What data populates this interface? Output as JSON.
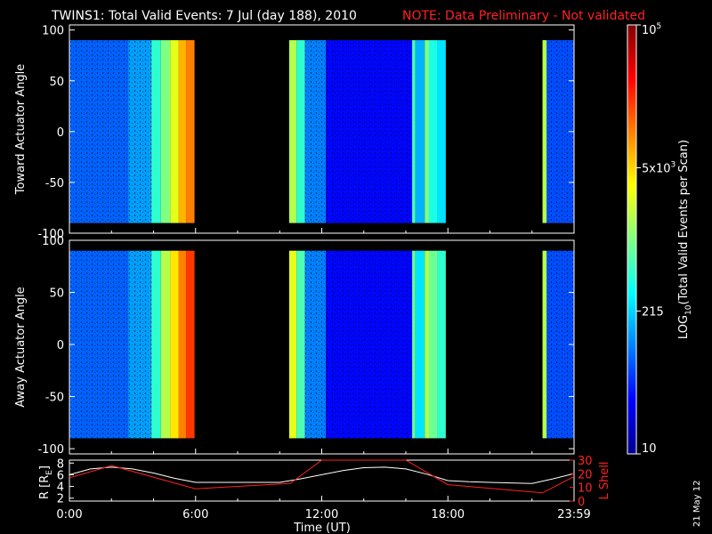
{
  "title": {
    "main": "TWINS1: Total Valid Events:  7 Jul (day 188), 2010",
    "note": "NOTE: Data Preliminary - Not validated"
  },
  "date_stamp": "21 May 12",
  "colors": {
    "background": "#000000",
    "note": "#ff2222",
    "r_line": "#ffffff",
    "lshell_line": "#ff2222"
  },
  "chart_data": [
    {
      "type": "heatmap",
      "name": "toward",
      "ylabel": "Toward Actuator Angle",
      "ylim": [
        -100,
        105
      ],
      "yticks": [
        -100,
        -50,
        0,
        50,
        100
      ],
      "xlim": [
        0,
        24
      ],
      "data_y_range": [
        -90,
        90
      ],
      "segments": [
        {
          "start": 0.0,
          "end": 2.8,
          "level": 0.22
        },
        {
          "start": 2.8,
          "end": 3.9,
          "level": 0.28
        },
        {
          "start": 3.9,
          "end": 4.35,
          "level": 0.42
        },
        {
          "start": 4.35,
          "end": 4.8,
          "level": 0.5
        },
        {
          "start": 4.8,
          "end": 5.2,
          "level": 0.6
        },
        {
          "start": 5.2,
          "end": 5.55,
          "level": 0.7
        },
        {
          "start": 5.55,
          "end": 5.95,
          "level": 0.75
        },
        {
          "start": 10.45,
          "end": 10.8,
          "level": 0.55
        },
        {
          "start": 10.8,
          "end": 11.2,
          "level": 0.42
        },
        {
          "start": 11.2,
          "end": 12.2,
          "level": 0.25
        },
        {
          "start": 12.2,
          "end": 16.3,
          "level": 0.13
        },
        {
          "start": 16.3,
          "end": 16.45,
          "level": 0.45
        },
        {
          "start": 16.45,
          "end": 16.9,
          "level": 0.3
        },
        {
          "start": 16.9,
          "end": 17.1,
          "level": 0.5
        },
        {
          "start": 17.1,
          "end": 17.5,
          "level": 0.4
        },
        {
          "start": 17.5,
          "end": 17.9,
          "level": 0.35
        },
        {
          "start": 22.5,
          "end": 22.7,
          "level": 0.55
        },
        {
          "start": 22.7,
          "end": 24.0,
          "level": 0.2
        }
      ]
    },
    {
      "type": "heatmap",
      "name": "away",
      "ylabel": "Away Actuator Angle",
      "ylim": [
        -105,
        100
      ],
      "yticks": [
        -100,
        -50,
        0,
        50,
        100
      ],
      "xlim": [
        0,
        24
      ],
      "data_y_range": [
        -90,
        90
      ],
      "segments": [
        {
          "start": 0.0,
          "end": 2.8,
          "level": 0.22
        },
        {
          "start": 2.8,
          "end": 3.9,
          "level": 0.28
        },
        {
          "start": 3.9,
          "end": 4.35,
          "level": 0.42
        },
        {
          "start": 4.35,
          "end": 4.8,
          "level": 0.55
        },
        {
          "start": 4.8,
          "end": 5.2,
          "level": 0.65
        },
        {
          "start": 5.2,
          "end": 5.55,
          "level": 0.75
        },
        {
          "start": 5.55,
          "end": 5.95,
          "level": 0.82
        },
        {
          "start": 10.45,
          "end": 10.8,
          "level": 0.6
        },
        {
          "start": 10.8,
          "end": 11.2,
          "level": 0.45
        },
        {
          "start": 11.2,
          "end": 12.2,
          "level": 0.25
        },
        {
          "start": 12.2,
          "end": 16.3,
          "level": 0.13
        },
        {
          "start": 16.3,
          "end": 16.45,
          "level": 0.48
        },
        {
          "start": 16.45,
          "end": 16.9,
          "level": 0.35
        },
        {
          "start": 16.9,
          "end": 17.1,
          "level": 0.55
        },
        {
          "start": 17.1,
          "end": 17.5,
          "level": 0.48
        },
        {
          "start": 17.5,
          "end": 17.9,
          "level": 0.42
        },
        {
          "start": 22.5,
          "end": 22.7,
          "level": 0.55
        },
        {
          "start": 22.7,
          "end": 24.0,
          "level": 0.2
        }
      ]
    },
    {
      "type": "line",
      "name": "orbit",
      "ylabel_left": "R [R_E]",
      "ylabel_left_parts": {
        "main": "R [R",
        "sub": "E",
        "end": "]"
      },
      "ylabel_right": "L Shell",
      "ylim_left": [
        1.5,
        8.5
      ],
      "yticks_left": [
        2,
        4,
        6,
        8
      ],
      "ylim_right": [
        0,
        30
      ],
      "yticks_right": [
        0,
        10,
        20,
        30
      ],
      "xlim": [
        0,
        24
      ],
      "xticks": [
        {
          "value": 0,
          "label": "0:00"
        },
        {
          "value": 6,
          "label": "6:00"
        },
        {
          "value": 12,
          "label": "12:00"
        },
        {
          "value": 18,
          "label": "18:00"
        },
        {
          "value": 24,
          "label": "23:59"
        }
      ],
      "xlabel": "Time (UT)",
      "series": [
        {
          "name": "R",
          "axis": "left",
          "x": [
            0,
            1,
            2,
            3,
            4,
            5,
            6,
            7,
            8,
            9,
            10,
            11,
            12,
            13,
            14,
            15,
            16,
            17,
            18,
            19,
            20,
            21,
            22,
            23,
            24
          ],
          "y": [
            6.0,
            7.0,
            7.3,
            7.0,
            6.3,
            5.4,
            4.7,
            4.7,
            4.7,
            4.7,
            4.7,
            5.3,
            6.0,
            6.7,
            7.2,
            7.3,
            7.0,
            6.1,
            5.0,
            4.8,
            4.7,
            4.6,
            4.5,
            5.3,
            6.2
          ]
        },
        {
          "name": "L Shell",
          "axis": "right",
          "x": [
            0,
            2,
            6,
            10.5,
            12,
            16,
            18,
            22.5,
            24
          ],
          "y": [
            17,
            26,
            9,
            13,
            30,
            30,
            12,
            6,
            18
          ]
        }
      ]
    }
  ],
  "colorbar": {
    "ylabel": "LOG10(Total Valid Events per Scan)",
    "ylabel_parts": {
      "pre": "LOG",
      "sub": "10",
      "post": "(Total Valid Events per Scan)"
    },
    "ticks": [
      {
        "label": "10",
        "level": 0.0
      },
      {
        "label": "215",
        "level": 0.333
      },
      {
        "label": "5x10",
        "sup": "3",
        "level": 0.667
      },
      {
        "label": "10",
        "sup": "5",
        "level": 1.0
      }
    ]
  }
}
